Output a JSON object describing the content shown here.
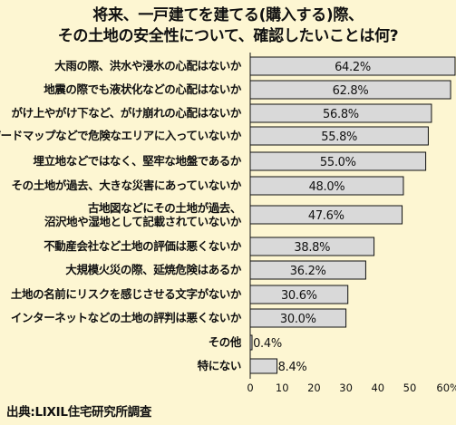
{
  "title": {
    "line1": "将来、一戸建てを建てる(購入する)際、",
    "line2": "その土地の安全性について、確認したいことは何?"
  },
  "source": "出典:LIXIL住宅研究所調査",
  "colors": {
    "background": "#fdf6d2",
    "bar_fill": "#d9d9d9",
    "bar_stroke": "#111111"
  },
  "chart_data": {
    "type": "bar",
    "orientation": "horizontal",
    "categories": [
      [
        "大雨の際、洪水や浸水の心配はないか"
      ],
      [
        "地震の際でも液状化などの心配はないか"
      ],
      [
        "がけ上やがけ下など、がけ崩れの心配はないか"
      ],
      [
        "ハザードマップなどで危険なエリアに入っていないか"
      ],
      [
        "埋立地などではなく、堅牢な地盤であるか"
      ],
      [
        "その土地が過去、大きな災害にあっていないか"
      ],
      [
        "古地図などにその土地が過去、",
        "沼沢地や湿地として記載されていないか"
      ],
      [
        "不動産会社など土地の評価は悪くないか"
      ],
      [
        "大規模火災の際、延焼危険はあるか"
      ],
      [
        "土地の名前にリスクを感じさせる文字がないか"
      ],
      [
        "インターネットなどの土地の評判は悪くないか"
      ],
      [
        "その他"
      ],
      [
        "特にない"
      ]
    ],
    "values": [
      64.2,
      62.8,
      56.8,
      55.8,
      55.0,
      48.0,
      47.6,
      38.8,
      36.2,
      30.6,
      30.0,
      0.4,
      8.4
    ],
    "value_labels": [
      "64.2%",
      "62.8%",
      "56.8%",
      "55.8%",
      "55.0%",
      "48.0%",
      "47.6%",
      "38.8%",
      "36.2%",
      "30.6%",
      "30.0%",
      "0.4%",
      "8.4%"
    ],
    "x_ticks": [
      "0",
      "10",
      "20",
      "30",
      "40",
      "50",
      "60%"
    ],
    "xlim": [
      0,
      60
    ],
    "grid": false
  }
}
